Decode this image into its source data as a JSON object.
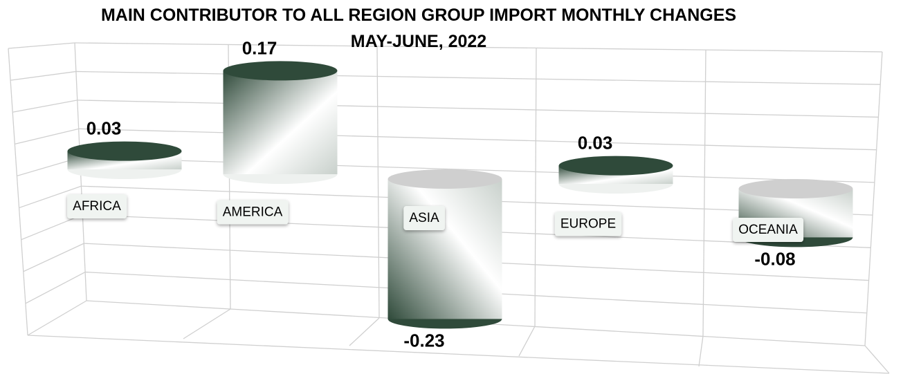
{
  "chart_data": {
    "type": "cylinder-bar",
    "title": "MAIN CONTRIBUTOR TO ALL  REGION GROUP IMPORT MONTHLY CHANGES",
    "subtitle": "MAY-JUNE, 2022",
    "categories": [
      "AFRICA",
      "AMERICA",
      "ASIA",
      "EUROPE",
      "OCEANIA"
    ],
    "values": [
      0.03,
      0.17,
      -0.23,
      0.03,
      -0.08
    ],
    "color": "#2f4a3a"
  }
}
